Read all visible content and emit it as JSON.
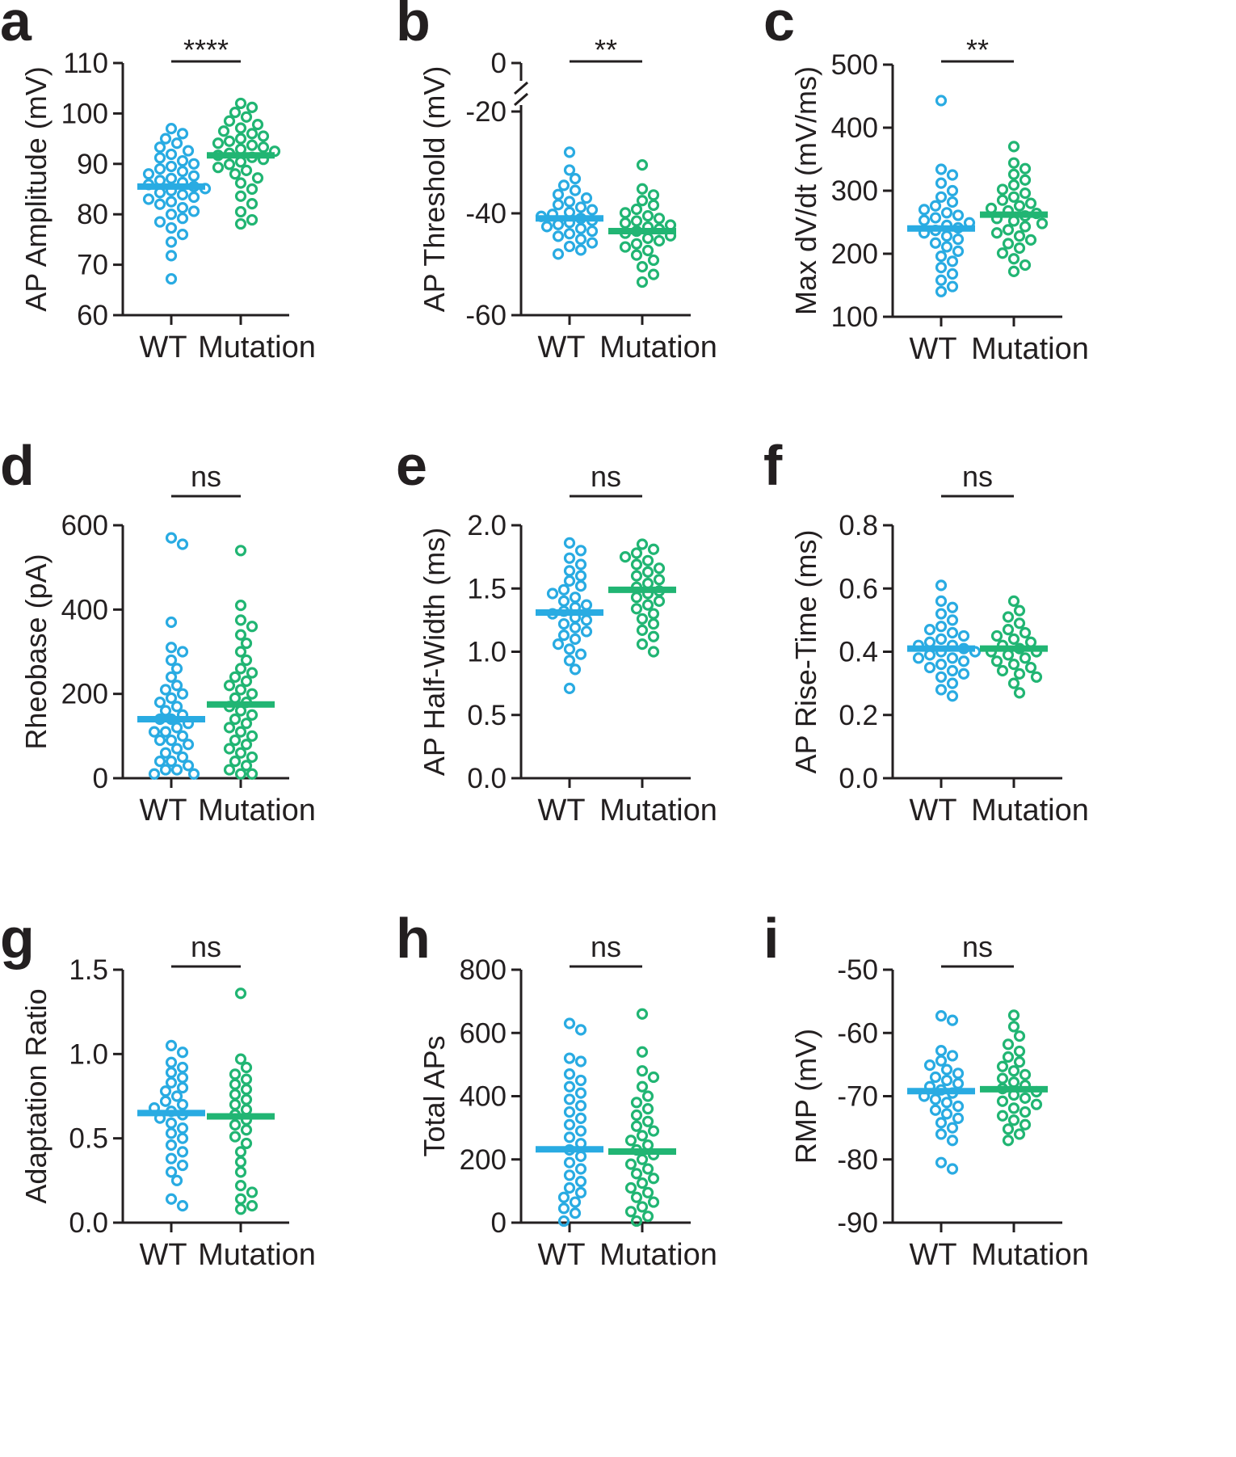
{
  "figure_title": "",
  "colors": {
    "wt": "#29abe2",
    "mutation": "#21b573",
    "axis": "#231f20"
  },
  "chart_data": [
    {
      "panel": "a",
      "type": "scatter",
      "ylabel": "AP Amplitude (mV)",
      "xlabel": "",
      "ylim": [
        60,
        110
      ],
      "yticks": [
        60,
        70,
        80,
        90,
        100,
        110
      ],
      "ytick_labels": [
        "60",
        "70",
        "80",
        "90",
        "100",
        "110"
      ],
      "categories": [
        "WT",
        "Mutation"
      ],
      "significance": "****",
      "series": [
        {
          "name": "WT",
          "mean": 85.5,
          "values": [
            67.2,
            71.8,
            74.5,
            76,
            77.3,
            78.5,
            79.2,
            80,
            80.6,
            81.3,
            82,
            82.5,
            83,
            83.4,
            83.9,
            84.3,
            84.7,
            85.1,
            85.5,
            85.9,
            86.3,
            86.7,
            87.1,
            87.6,
            88,
            88.5,
            89,
            89.5,
            90,
            90.6,
            91.2,
            91.9,
            92.6,
            93.3,
            94.1,
            95,
            96,
            97
          ]
        },
        {
          "name": "Mutation",
          "mean": 91.7,
          "values": [
            78.1,
            78.9,
            80.5,
            82.1,
            83.6,
            85,
            86.2,
            87.2,
            88,
            88.7,
            89.3,
            89.9,
            90.4,
            90.9,
            91.3,
            91.7,
            92.1,
            92.5,
            92.9,
            93.3,
            93.7,
            94.1,
            94.5,
            95,
            95.5,
            96,
            96.5,
            97.1,
            97.8,
            98.5,
            99.3,
            100.2,
            101.2,
            102
          ]
        }
      ]
    },
    {
      "panel": "b",
      "type": "scatter",
      "ylabel": "AP Threshold (mV)",
      "xlabel": "",
      "ylim": [
        -60,
        0
      ],
      "yticks": [
        -60,
        -40,
        -20,
        0
      ],
      "ytick_labels": [
        "-60",
        "-40",
        "-20",
        "0"
      ],
      "axis_break": [
        -20,
        0
      ],
      "categories": [
        "WT",
        "Mutation"
      ],
      "significance": "**",
      "series": [
        {
          "name": "WT",
          "mean": -41,
          "values": [
            -48,
            -47.2,
            -46.5,
            -45.8,
            -45.1,
            -44.5,
            -44,
            -43.5,
            -43,
            -42.6,
            -42.2,
            -41.8,
            -41.4,
            -41,
            -40.6,
            -40.2,
            -39.8,
            -39.3,
            -38.8,
            -38.3,
            -37.7,
            -37,
            -36.3,
            -35.5,
            -34.5,
            -33.2,
            -31.5,
            -28
          ]
        },
        {
          "name": "Mutation",
          "mean": -43.5,
          "values": [
            -53.5,
            -52,
            -50.5,
            -49.2,
            -48.2,
            -47.3,
            -46.6,
            -46,
            -45.4,
            -44.9,
            -44.4,
            -43.9,
            -43.5,
            -43.1,
            -42.7,
            -42.3,
            -41.9,
            -41.5,
            -41,
            -40.5,
            -39.9,
            -39.2,
            -38.4,
            -37.5,
            -36.4,
            -35.2,
            -30.5
          ]
        }
      ]
    },
    {
      "panel": "c",
      "type": "scatter",
      "ylabel": "Max dV/dt (mV/ms)",
      "xlabel": "",
      "ylim": [
        100,
        500
      ],
      "yticks": [
        100,
        200,
        300,
        400,
        500
      ],
      "ytick_labels": [
        "100",
        "200",
        "300",
        "400",
        "500"
      ],
      "categories": [
        "WT",
        "Mutation"
      ],
      "significance": "**",
      "series": [
        {
          "name": "WT",
          "mean": 240,
          "values": [
            140,
            148,
            158,
            168,
            178,
            188,
            196,
            204,
            211,
            217,
            223,
            228,
            233,
            237,
            241,
            245,
            249,
            253,
            257,
            261,
            265,
            270,
            276,
            282,
            290,
            300,
            312,
            325,
            334,
            443
          ]
        },
        {
          "name": "Mutation",
          "mean": 262,
          "values": [
            172,
            182,
            192,
            201,
            209,
            216,
            222,
            228,
            233,
            238,
            243,
            248,
            252,
            256,
            260,
            264,
            268,
            272,
            276,
            280,
            285,
            290,
            296,
            302,
            309,
            317,
            326,
            335,
            344,
            370
          ]
        }
      ]
    },
    {
      "panel": "d",
      "type": "scatter",
      "ylabel": "Rheobase (pA)",
      "xlabel": "",
      "ylim": [
        0,
        600
      ],
      "yticks": [
        0,
        200,
        400,
        600
      ],
      "ytick_labels": [
        "0",
        "200",
        "400",
        "600"
      ],
      "categories": [
        "WT",
        "Mutation"
      ],
      "significance": "ns",
      "series": [
        {
          "name": "WT",
          "mean": 140,
          "values": [
            10,
            10,
            20,
            20,
            30,
            40,
            40,
            50,
            60,
            70,
            80,
            90,
            90,
            100,
            110,
            110,
            120,
            130,
            140,
            140,
            150,
            160,
            170,
            180,
            190,
            200,
            210,
            220,
            240,
            260,
            280,
            300,
            310,
            370,
            555,
            570
          ]
        },
        {
          "name": "Mutation",
          "mean": 175,
          "values": [
            10,
            10,
            20,
            30,
            40,
            50,
            60,
            70,
            80,
            90,
            100,
            110,
            120,
            130,
            140,
            150,
            160,
            170,
            180,
            190,
            200,
            210,
            220,
            230,
            240,
            250,
            260,
            280,
            300,
            320,
            340,
            360,
            375,
            410,
            540
          ]
        }
      ]
    },
    {
      "panel": "e",
      "type": "scatter",
      "ylabel": "AP Half-Width (ms)",
      "xlabel": "",
      "ylim": [
        0.0,
        2.0
      ],
      "yticks": [
        0.0,
        0.5,
        1.0,
        1.5,
        2.0
      ],
      "ytick_labels": [
        "0.0",
        "0.5",
        "1.0",
        "1.5",
        "2.0"
      ],
      "categories": [
        "WT",
        "Mutation"
      ],
      "significance": "ns",
      "series": [
        {
          "name": "WT",
          "mean": 1.31,
          "values": [
            0.71,
            0.86,
            0.93,
            0.98,
            1.02,
            1.06,
            1.1,
            1.13,
            1.16,
            1.19,
            1.22,
            1.25,
            1.27,
            1.3,
            1.32,
            1.35,
            1.37,
            1.4,
            1.43,
            1.46,
            1.49,
            1.52,
            1.56,
            1.6,
            1.64,
            1.69,
            1.74,
            1.8,
            1.86
          ]
        },
        {
          "name": "Mutation",
          "mean": 1.49,
          "values": [
            1.0,
            1.06,
            1.12,
            1.17,
            1.22,
            1.26,
            1.3,
            1.34,
            1.37,
            1.4,
            1.43,
            1.46,
            1.48,
            1.51,
            1.54,
            1.57,
            1.6,
            1.63,
            1.66,
            1.69,
            1.72,
            1.75,
            1.78,
            1.81,
            1.85
          ]
        }
      ]
    },
    {
      "panel": "f",
      "type": "scatter",
      "ylabel": "AP Rise-Time (ms)",
      "xlabel": "",
      "ylim": [
        0.0,
        0.8
      ],
      "yticks": [
        0.0,
        0.2,
        0.4,
        0.6,
        0.8
      ],
      "ytick_labels": [
        "0.0",
        "0.2",
        "0.4",
        "0.6",
        "0.8"
      ],
      "categories": [
        "WT",
        "Mutation"
      ],
      "significance": "ns",
      "series": [
        {
          "name": "WT",
          "mean": 0.41,
          "values": [
            0.26,
            0.28,
            0.3,
            0.32,
            0.33,
            0.34,
            0.35,
            0.36,
            0.37,
            0.38,
            0.38,
            0.39,
            0.4,
            0.4,
            0.41,
            0.42,
            0.42,
            0.43,
            0.44,
            0.45,
            0.46,
            0.47,
            0.48,
            0.5,
            0.52,
            0.54,
            0.56,
            0.61
          ]
        },
        {
          "name": "Mutation",
          "mean": 0.41,
          "values": [
            0.27,
            0.3,
            0.32,
            0.33,
            0.34,
            0.35,
            0.36,
            0.37,
            0.38,
            0.39,
            0.4,
            0.4,
            0.41,
            0.42,
            0.43,
            0.44,
            0.45,
            0.46,
            0.47,
            0.49,
            0.51,
            0.53,
            0.56
          ]
        }
      ]
    },
    {
      "panel": "g",
      "type": "scatter",
      "ylabel": "Adaptation Ratio",
      "xlabel": "",
      "ylim": [
        0.0,
        1.5
      ],
      "yticks": [
        0.0,
        0.5,
        1.0,
        1.5
      ],
      "ytick_labels": [
        "0.0",
        "0.5",
        "1.0",
        "1.5"
      ],
      "categories": [
        "WT",
        "Mutation"
      ],
      "significance": "ns",
      "series": [
        {
          "name": "WT",
          "mean": 0.65,
          "values": [
            0.1,
            0.14,
            0.25,
            0.3,
            0.34,
            0.38,
            0.42,
            0.46,
            0.5,
            0.53,
            0.56,
            0.59,
            0.62,
            0.64,
            0.66,
            0.68,
            0.7,
            0.72,
            0.75,
            0.78,
            0.8,
            0.83,
            0.86,
            0.89,
            0.92,
            0.95,
            1.01,
            1.05
          ]
        },
        {
          "name": "Mutation",
          "mean": 0.63,
          "values": [
            0.08,
            0.1,
            0.14,
            0.18,
            0.22,
            0.3,
            0.36,
            0.42,
            0.47,
            0.51,
            0.55,
            0.58,
            0.61,
            0.64,
            0.67,
            0.7,
            0.73,
            0.76,
            0.79,
            0.82,
            0.85,
            0.88,
            0.92,
            0.97,
            1.36
          ]
        }
      ]
    },
    {
      "panel": "h",
      "type": "scatter",
      "ylabel": "Total APs",
      "xlabel": "",
      "ylim": [
        0,
        800
      ],
      "yticks": [
        0,
        200,
        400,
        600,
        800
      ],
      "ytick_labels": [
        "0",
        "200",
        "400",
        "600",
        "800"
      ],
      "categories": [
        "WT",
        "Mutation"
      ],
      "significance": "ns",
      "series": [
        {
          "name": "WT",
          "mean": 232,
          "values": [
            5,
            30,
            45,
            65,
            80,
            95,
            110,
            130,
            150,
            170,
            190,
            210,
            230,
            250,
            270,
            290,
            310,
            330,
            350,
            370,
            390,
            410,
            430,
            450,
            470,
            510,
            520,
            610,
            630
          ]
        },
        {
          "name": "Mutation",
          "mean": 225,
          "values": [
            5,
            20,
            35,
            50,
            65,
            80,
            95,
            110,
            125,
            140,
            155,
            170,
            185,
            200,
            215,
            230,
            245,
            260,
            275,
            290,
            305,
            320,
            340,
            360,
            380,
            400,
            430,
            460,
            480,
            540,
            660
          ]
        }
      ]
    },
    {
      "panel": "i",
      "type": "scatter",
      "ylabel": "RMP (mV)",
      "xlabel": "",
      "ylim": [
        -90,
        -50
      ],
      "yticks": [
        -90,
        -80,
        -70,
        -60,
        -50
      ],
      "ytick_labels": [
        "-90",
        "-80",
        "-70",
        "-60",
        "-50"
      ],
      "categories": [
        "WT",
        "Mutation"
      ],
      "significance": "ns",
      "series": [
        {
          "name": "WT",
          "mean": -69.2,
          "values": [
            -81.5,
            -80.5,
            -77,
            -76,
            -75,
            -74.2,
            -73.5,
            -72.8,
            -72.2,
            -71.6,
            -71,
            -70.5,
            -70,
            -69.5,
            -69,
            -68.5,
            -68,
            -67.5,
            -67,
            -66.4,
            -65.8,
            -65.1,
            -64.4,
            -63.6,
            -62.8,
            -58,
            -57.3
          ]
        },
        {
          "name": "Mutation",
          "mean": -68.9,
          "values": [
            -77,
            -76,
            -75.2,
            -74.5,
            -73.8,
            -73.1,
            -72.5,
            -71.9,
            -71.3,
            -70.8,
            -70.3,
            -69.8,
            -69.3,
            -68.8,
            -68.3,
            -67.8,
            -67.2,
            -66.6,
            -66,
            -65.3,
            -64.6,
            -63.8,
            -62.9,
            -61.8,
            -60.5,
            -59,
            -57.2
          ]
        }
      ]
    }
  ]
}
